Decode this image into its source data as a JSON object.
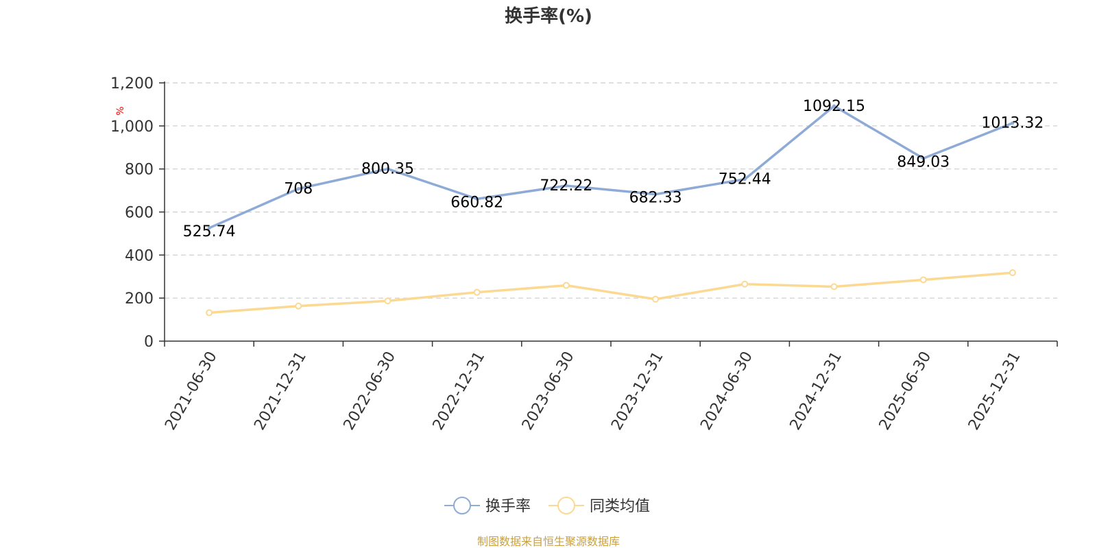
{
  "chart_data": {
    "type": "line",
    "title": "换手率(%)",
    "ylabel": "%",
    "ylim": [
      0,
      1200
    ],
    "yticks": [
      "0",
      "200",
      "400",
      "600",
      "800",
      "1,000",
      "1,200"
    ],
    "ytick_values": [
      0,
      200,
      400,
      600,
      800,
      1000,
      1200
    ],
    "categories": [
      "2021-06-30",
      "2021-12-31",
      "2022-06-30",
      "2022-12-31",
      "2023-06-30",
      "2023-12-31",
      "2024-06-30",
      "2024-12-31",
      "2025-06-30",
      "2025-12-31"
    ],
    "grid": true,
    "legend_position": "bottom",
    "series": [
      {
        "name": "换手率",
        "color": "#8eaad6",
        "values": [
          525.74,
          708,
          800.35,
          660.82,
          722.22,
          682.33,
          752.44,
          1092.15,
          849.03,
          1013.32
        ],
        "labels": [
          "525.74",
          "708",
          "800.35",
          "660.82",
          "722.22",
          "682.33",
          "752.44",
          "1092.15",
          "849.03",
          "1013.32"
        ]
      },
      {
        "name": "同类均值",
        "color": "#fbd993",
        "values": [
          132,
          163,
          187,
          227,
          259,
          195,
          265,
          253,
          285,
          318
        ]
      }
    ],
    "source_note": "制图数据来自恒生聚源数据库"
  }
}
